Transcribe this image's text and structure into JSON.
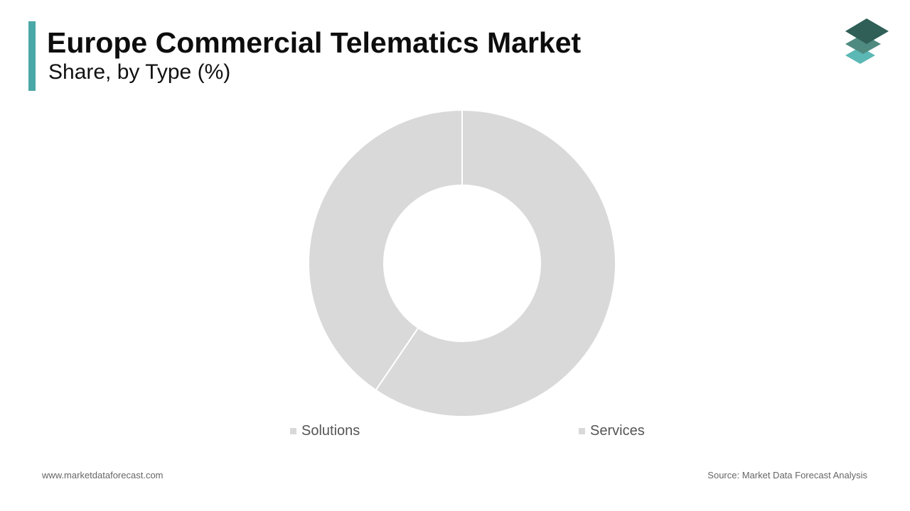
{
  "header": {
    "title": "Europe Commercial Telematics Market",
    "subtitle": "Share, by Type (%)"
  },
  "footer": {
    "website": "www.marketdataforecast.com",
    "source": "Source: Market Data Forecast Analysis"
  },
  "colors": {
    "accent": "#4aa8a6",
    "slice_fill": "#d9d9d9",
    "legend_swatch": "#d9d9d9",
    "logo_top": "#2f5f57",
    "logo_middle": "#4f8a80",
    "logo_bottom": "#5bb8b4"
  },
  "icons": {
    "brand_logo": "stacked-layers-logo"
  },
  "chart_data": {
    "type": "pie",
    "donut": true,
    "title": "Europe Commercial Telematics Market",
    "subtitle": "Share, by Type (%)",
    "categories": [
      "Services",
      "Solutions"
    ],
    "values": [
      59.5,
      40.5
    ],
    "legend": {
      "position": "bottom",
      "order": [
        "Solutions",
        "Services"
      ]
    },
    "start_angle_deg": 0,
    "direction": "clockwise"
  }
}
